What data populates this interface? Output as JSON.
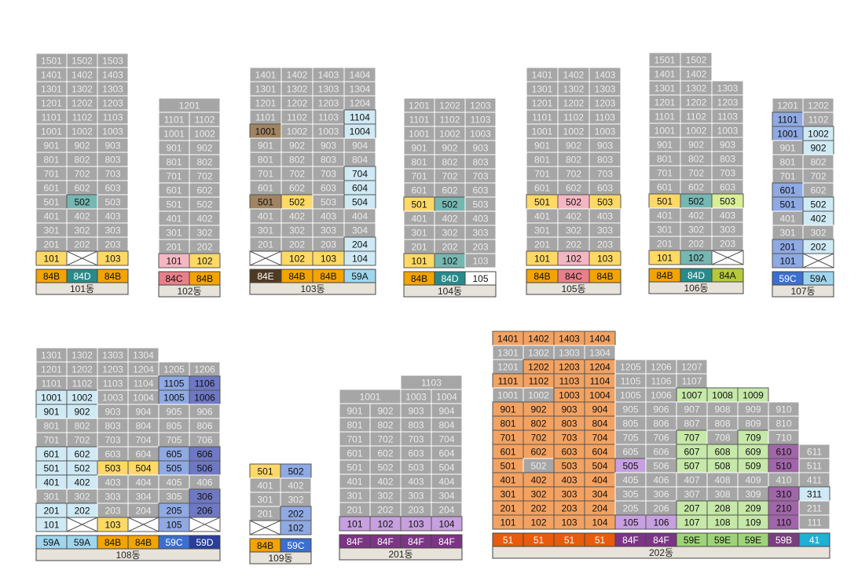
{
  "colors": {
    "gray": "#a6a6a6",
    "yellow": "#ffd966",
    "teal": "#76b7b2",
    "pink": "#f4b6c2",
    "brown": "#a08462",
    "lightblue": "#cfeaf5",
    "blue": "#8fa9e3",
    "navy": "#6e78c3",
    "orange": "#f4a261",
    "purple": "#c7a0e0",
    "plum": "#a066a8",
    "green": "#c6e8a8",
    "lime": "#d9ee95",
    "white": "#ffffff",
    "t_84B": "#f3a400",
    "t_84D": "#2a8a8a",
    "t_84C": "#e8808a",
    "t_84E": "#4f3a23",
    "t_84A": "#b5c93a",
    "t_59A": "#9fd6ee",
    "t_59B": "#7a3f7f",
    "t_59C": "#3c6fd0",
    "t_59D": "#2a3f9c",
    "t_59E": "#9fd37a",
    "t_84F": "#7c3585",
    "t_51": "#e85a0c",
    "t_41": "#1fb0d4",
    "t_105": "#ffffff"
  },
  "buildings": [
    {
      "name": "101동",
      "floors": [
        [
          "1501",
          "1502",
          "1503"
        ],
        [
          "1401",
          "1402",
          "1403"
        ],
        [
          "1301",
          "1302",
          "1303"
        ],
        [
          "1201",
          "1202",
          "1203"
        ],
        [
          "1101",
          "1102",
          "1103"
        ],
        [
          "1001",
          "1002",
          "1003"
        ],
        [
          "901",
          "902",
          "903"
        ],
        [
          "801",
          "802",
          "803"
        ],
        [
          "701",
          "702",
          "703"
        ],
        [
          "601",
          "602",
          "603"
        ],
        [
          "501",
          "502",
          "503"
        ],
        [
          "401",
          "402",
          "403"
        ],
        [
          "301",
          "302",
          "303"
        ],
        [
          "201",
          "202",
          "203"
        ],
        [
          "101",
          "",
          "103"
        ]
      ],
      "highlights": {
        "502": "teal",
        "101": "yellow",
        "103": "yellow"
      },
      "types": [
        "84B",
        "84D",
        "84B"
      ]
    },
    {
      "name": "102동",
      "floors": [
        [
          "1201",
          "1201"
        ],
        [
          "1101",
          "1102"
        ],
        [
          "1001",
          "1002"
        ],
        [
          "901",
          "902"
        ],
        [
          "801",
          "802"
        ],
        [
          "701",
          "702"
        ],
        [
          "601",
          "602"
        ],
        [
          "501",
          "502"
        ],
        [
          "401",
          "402"
        ],
        [
          "301",
          "302"
        ],
        [
          "201",
          "202"
        ],
        [
          "101",
          "102"
        ]
      ],
      "merged_top": "1201",
      "highlights": {
        "101": "pink",
        "102": "yellow"
      },
      "types": [
        "84C",
        "84B"
      ]
    },
    {
      "name": "103동",
      "floors": [
        [
          "1401",
          "1402",
          "1403",
          "1404"
        ],
        [
          "1301",
          "1302",
          "1303",
          "1304"
        ],
        [
          "1201",
          "1202",
          "1203",
          "1204"
        ],
        [
          "1101",
          "1102",
          "1103",
          "1104"
        ],
        [
          "1001",
          "1002",
          "1003",
          "1004"
        ],
        [
          "901",
          "902",
          "903",
          "904"
        ],
        [
          "801",
          "802",
          "803",
          "804"
        ],
        [
          "701",
          "702",
          "703",
          "704"
        ],
        [
          "601",
          "602",
          "603",
          "604"
        ],
        [
          "501",
          "502",
          "503",
          "504"
        ],
        [
          "401",
          "402",
          "403",
          "404"
        ],
        [
          "301",
          "302",
          "303",
          "304"
        ],
        [
          "201",
          "202",
          "203",
          "204"
        ],
        [
          "",
          "102",
          "103",
          "104"
        ]
      ],
      "highlights": {
        "1104": "lightblue",
        "1004": "lightblue",
        "1001": "brown",
        "704": "lightblue",
        "604": "lightblue",
        "501": "brown",
        "502": "yellow",
        "504": "lightblue",
        "204": "lightblue",
        "102": "yellow",
        "103": "yellow",
        "104": "lightblue"
      },
      "types": [
        "84E",
        "84B",
        "84B",
        "59A"
      ]
    },
    {
      "name": "104동",
      "floors": [
        [
          "1201",
          "1202",
          "1203"
        ],
        [
          "1101",
          "1102",
          "1103"
        ],
        [
          "1001",
          "1002",
          "1003"
        ],
        [
          "901",
          "902",
          "903"
        ],
        [
          "801",
          "802",
          "803"
        ],
        [
          "701",
          "702",
          "703"
        ],
        [
          "601",
          "602",
          "603"
        ],
        [
          "501",
          "502",
          "503"
        ],
        [
          "401",
          "402",
          "403"
        ],
        [
          "301",
          "302",
          "303"
        ],
        [
          "201",
          "202",
          "203"
        ],
        [
          "101",
          "102",
          "103"
        ]
      ],
      "highlights": {
        "501": "yellow",
        "502": "teal",
        "101": "yellow",
        "102": "teal"
      },
      "types": [
        "84B",
        "84D",
        "105"
      ]
    },
    {
      "name": "105동",
      "floors": [
        [
          "1401",
          "1402",
          "1403"
        ],
        [
          "1301",
          "1302",
          "1303"
        ],
        [
          "1201",
          "1202",
          "1203"
        ],
        [
          "1101",
          "1102",
          "1103"
        ],
        [
          "1001",
          "1002",
          "1003"
        ],
        [
          "901",
          "902",
          "903"
        ],
        [
          "801",
          "802",
          "803"
        ],
        [
          "701",
          "702",
          "703"
        ],
        [
          "601",
          "602",
          "603"
        ],
        [
          "501",
          "502",
          "503"
        ],
        [
          "401",
          "402",
          "403"
        ],
        [
          "301",
          "302",
          "303"
        ],
        [
          "201",
          "202",
          "203"
        ],
        [
          "101",
          "102",
          "103"
        ]
      ],
      "highlights": {
        "501": "yellow",
        "502": "pink",
        "503": "yellow",
        "101": "yellow",
        "102": "pink",
        "103": "yellow"
      },
      "types": [
        "84B",
        "84C",
        "84B"
      ]
    },
    {
      "name": "106동",
      "floors": [
        [
          "1501",
          "1502",
          null
        ],
        [
          "1401",
          "1402",
          null
        ],
        [
          "1301",
          "1302",
          "1303"
        ],
        [
          "1201",
          "1202",
          "1203"
        ],
        [
          "1101",
          "1102",
          "1103"
        ],
        [
          "1001",
          "1002",
          "1003"
        ],
        [
          "901",
          "902",
          "903"
        ],
        [
          "801",
          "802",
          "803"
        ],
        [
          "701",
          "702",
          "703"
        ],
        [
          "601",
          "602",
          "603"
        ],
        [
          "501",
          "502",
          "503"
        ],
        [
          "401",
          "402",
          "403"
        ],
        [
          "301",
          "302",
          "303"
        ],
        [
          "201",
          "202",
          "203"
        ],
        [
          "101",
          "102",
          ""
        ]
      ],
      "highlights": {
        "501": "yellow",
        "502": "teal",
        "503": "lime",
        "101": "yellow",
        "102": "teal"
      },
      "types": [
        "84B",
        "84D",
        "84A"
      ]
    },
    {
      "name": "107동",
      "floors": [
        [
          "1201",
          "1202"
        ],
        [
          "1101",
          "1102"
        ],
        [
          "1001",
          "1002"
        ],
        [
          "901",
          "902"
        ],
        [
          "801",
          "802"
        ],
        [
          "701",
          "702"
        ],
        [
          "601",
          "602"
        ],
        [
          "501",
          "502"
        ],
        [
          "401",
          "402"
        ],
        [
          "301",
          "302"
        ],
        [
          "201",
          "202"
        ],
        [
          "101",
          ""
        ]
      ],
      "highlights": {
        "1101": "blue",
        "1001": "blue",
        "1002": "lightblue",
        "902": "lightblue",
        "601": "blue",
        "501": "blue",
        "502": "lightblue",
        "402": "lightblue",
        "201": "blue",
        "202": "lightblue",
        "101": "blue"
      },
      "types": [
        "59C",
        "59A"
      ]
    },
    {
      "name": "108동",
      "floors": [
        [
          "1301",
          "1302",
          "1303",
          "1304",
          null,
          null
        ],
        [
          "1201",
          "1202",
          "1203",
          "1204",
          "1205",
          "1206"
        ],
        [
          "1101",
          "1102",
          "1103",
          "1104",
          "1105",
          "1106"
        ],
        [
          "1001",
          "1002",
          "1003",
          "1004",
          "1005",
          "1006"
        ],
        [
          "901",
          "902",
          "903",
          "904",
          "905",
          "906"
        ],
        [
          "801",
          "802",
          "803",
          "804",
          "805",
          "806"
        ],
        [
          "701",
          "702",
          "703",
          "704",
          "705",
          "706"
        ],
        [
          "601",
          "602",
          "603",
          "604",
          "605",
          "606"
        ],
        [
          "501",
          "502",
          "503",
          "504",
          "505",
          "506"
        ],
        [
          "401",
          "402",
          "403",
          "404",
          "405",
          "406"
        ],
        [
          "301",
          "302",
          "303",
          "304",
          "305",
          "306"
        ],
        [
          "201",
          "202",
          "203",
          "204",
          "205",
          "206"
        ],
        [
          "101",
          "",
          "103",
          "",
          "105",
          ""
        ]
      ],
      "highlights": {
        "1105": "blue",
        "1106": "navy",
        "1001": "lightblue",
        "1002": "lightblue",
        "1005": "blue",
        "1006": "navy",
        "901": "lightblue",
        "902": "lightblue",
        "601": "lightblue",
        "602": "lightblue",
        "605": "blue",
        "606": "navy",
        "501": "lightblue",
        "502": "lightblue",
        "503": "yellow",
        "504": "yellow",
        "505": "blue",
        "506": "navy",
        "401": "lightblue",
        "402": "lightblue",
        "306": "navy",
        "201": "lightblue",
        "202": "lightblue",
        "205": "blue",
        "206": "navy",
        "101": "lightblue",
        "103": "yellow",
        "105": "blue"
      },
      "types": [
        "59A",
        "59A",
        "84B",
        "84B",
        "59C",
        "59D"
      ]
    },
    {
      "name": "109동",
      "floors": [
        [
          "501",
          "502"
        ],
        [
          "401",
          "402"
        ],
        [
          "301",
          "302"
        ],
        [
          "201",
          "202"
        ],
        [
          "",
          "102"
        ]
      ],
      "highlights": {
        "501": "yellow",
        "502": "blue",
        "202": "blue",
        "102": "blue"
      },
      "types": [
        "84B",
        "59C"
      ]
    },
    {
      "name": "201동",
      "floors": [
        [
          null,
          null,
          "1103",
          "1103"
        ],
        [
          "1001",
          "1001",
          "1003",
          "1004"
        ],
        [
          "901",
          "902",
          "903",
          "904"
        ],
        [
          "801",
          "802",
          "803",
          "804"
        ],
        [
          "701",
          "702",
          "703",
          "704"
        ],
        [
          "601",
          "602",
          "603",
          "604"
        ],
        [
          "501",
          "502",
          "503",
          "504"
        ],
        [
          "401",
          "402",
          "403",
          "404"
        ],
        [
          "301",
          "302",
          "303",
          "304"
        ],
        [
          "201",
          "202",
          "203",
          "204"
        ],
        [
          "101",
          "102",
          "103",
          "104"
        ]
      ],
      "highlights": {
        "101": "purple",
        "102": "purple",
        "103": "purple",
        "104": "purple"
      },
      "types": [
        "84F",
        "84F",
        "84F",
        "84F"
      ]
    },
    {
      "name": "202동",
      "floors": [
        [
          "1401",
          "1402",
          "1403",
          "1404",
          null,
          null,
          null,
          null,
          null,
          null,
          null
        ],
        [
          "1301",
          "1302",
          "1303",
          "1304",
          null,
          null,
          null,
          null,
          null,
          null,
          null
        ],
        [
          "1201",
          "1202",
          "1203",
          "1204",
          "1205",
          "1206",
          "1207",
          null,
          null,
          null,
          null
        ],
        [
          "1101",
          "1102",
          "1103",
          "1104",
          "1105",
          "1106",
          "1107",
          null,
          null,
          null,
          null
        ],
        [
          "1001",
          "1002",
          "1003",
          "1004",
          "1005",
          "1006",
          "1007",
          "1008",
          "1009",
          null,
          null
        ],
        [
          "901",
          "902",
          "903",
          "904",
          "905",
          "906",
          "907",
          "908",
          "909",
          "910",
          null
        ],
        [
          "801",
          "802",
          "803",
          "804",
          "805",
          "806",
          "807",
          "808",
          "809",
          "810",
          null
        ],
        [
          "701",
          "702",
          "703",
          "704",
          "705",
          "706",
          "707",
          "708",
          "709",
          "710",
          null
        ],
        [
          "601",
          "602",
          "603",
          "604",
          "605",
          "606",
          "607",
          "608",
          "609",
          "610",
          "611"
        ],
        [
          "501",
          "502",
          "503",
          "504",
          "505",
          "506",
          "507",
          "508",
          "509",
          "510",
          "511"
        ],
        [
          "401",
          "402",
          "403",
          "404",
          "405",
          "406",
          "407",
          "408",
          "409",
          "410",
          "411"
        ],
        [
          "301",
          "302",
          "303",
          "304",
          "305",
          "306",
          "307",
          "308",
          "309",
          "310",
          "311"
        ],
        [
          "201",
          "202",
          "203",
          "204",
          "205",
          "206",
          "207",
          "208",
          "209",
          "210",
          "211"
        ],
        [
          "101",
          "102",
          "103",
          "104",
          "105",
          "106",
          "107",
          "108",
          "109",
          "110",
          "111"
        ]
      ],
      "highlights": {
        "1401": "orange",
        "1402": "orange",
        "1403": "orange",
        "1404": "orange",
        "1202": "orange",
        "1203": "orange",
        "1204": "orange",
        "1101": "orange",
        "1102": "orange",
        "1103": "orange",
        "1104": "orange",
        "1003": "orange",
        "1004": "orange",
        "1007": "green",
        "1008": "green",
        "1009": "green",
        "901": "orange",
        "902": "orange",
        "903": "orange",
        "904": "orange",
        "801": "orange",
        "802": "orange",
        "803": "orange",
        "804": "orange",
        "701": "orange",
        "702": "orange",
        "703": "orange",
        "704": "orange",
        "707": "green",
        "709": "green",
        "601": "orange",
        "602": "orange",
        "603": "orange",
        "604": "orange",
        "607": "green",
        "608": "green",
        "609": "green",
        "610": "plum",
        "501": "orange",
        "503": "orange",
        "504": "orange",
        "505": "purple",
        "507": "green",
        "508": "green",
        "509": "green",
        "510": "plum",
        "401": "orange",
        "402": "orange",
        "403": "orange",
        "404": "orange",
        "301": "orange",
        "302": "orange",
        "303": "orange",
        "304": "orange",
        "310": "plum",
        "311": "lightblue",
        "201": "orange",
        "202": "orange",
        "203": "orange",
        "204": "orange",
        "207": "green",
        "208": "green",
        "209": "green",
        "210": "plum",
        "101": "orange",
        "102": "orange",
        "103": "orange",
        "104": "orange",
        "105": "purple",
        "106": "purple",
        "107": "green",
        "108": "green",
        "109": "green",
        "110": "plum"
      },
      "types": [
        "51",
        "51",
        "51",
        "51",
        "84F",
        "84F",
        "59E",
        "59E",
        "59E",
        "59B",
        "41"
      ]
    }
  ]
}
